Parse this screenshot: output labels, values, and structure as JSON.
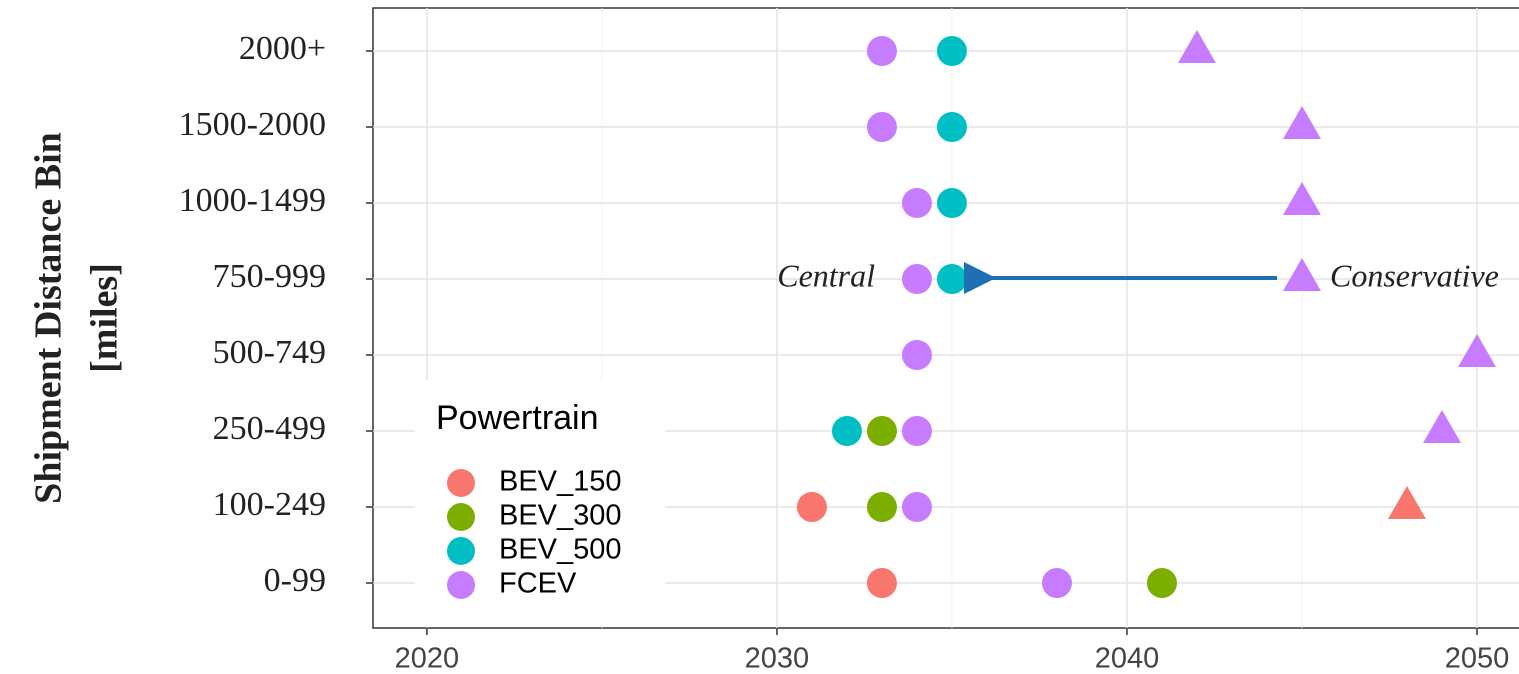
{
  "chart_data": {
    "type": "scatter",
    "ylabel": [
      "Shipment Distance Bin",
      "[miles]"
    ],
    "categories": [
      "0-99",
      "100-249",
      "250-499",
      "500-749",
      "750-999",
      "1000-1499",
      "1500-2000",
      "2000+"
    ],
    "legend_title": "Powertrain",
    "legend": "bottom-left",
    "series": [
      {
        "name": "BEV_150",
        "color": "#f8766d",
        "central": [
          2033,
          2031,
          null,
          null,
          null,
          null,
          null,
          null
        ],
        "conservative": [
          null,
          2048,
          null,
          null,
          null,
          null,
          null,
          null
        ]
      },
      {
        "name": "BEV_300",
        "color": "#7cae00",
        "central": [
          2041,
          2033,
          2033,
          null,
          null,
          null,
          null,
          null
        ],
        "conservative": [
          null,
          null,
          null,
          null,
          null,
          null,
          null,
          null
        ]
      },
      {
        "name": "BEV_500",
        "color": "#00bfc4",
        "central": [
          null,
          null,
          2032,
          null,
          2035,
          2035,
          2035,
          2035
        ],
        "conservative": [
          null,
          null,
          null,
          null,
          null,
          null,
          null,
          null
        ]
      },
      {
        "name": "FCEV",
        "color": "#c77cff",
        "central": [
          2038,
          2034,
          2034,
          2034,
          2034,
          2034,
          2033,
          2033
        ],
        "conservative": [
          null,
          null,
          2049,
          2050,
          2045,
          2045,
          2045,
          2042
        ]
      }
    ],
    "annotations": [
      "Central",
      "Conservative"
    ],
    "xlim": [
      2018.46,
      2051.2
    ],
    "xticks": [
      2020,
      2030,
      2040,
      2050
    ],
    "xminor": [
      2025,
      2035,
      2045
    ],
    "grid": true
  }
}
